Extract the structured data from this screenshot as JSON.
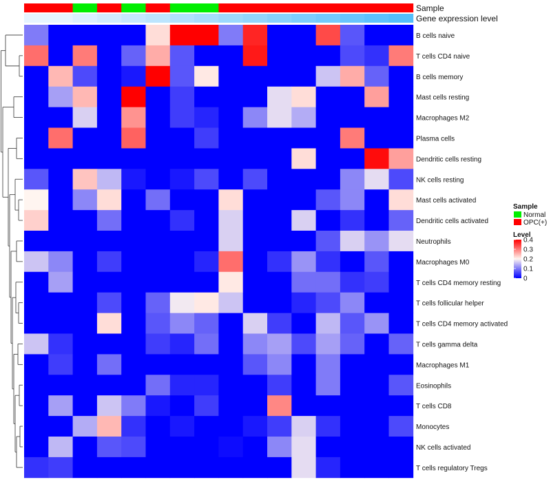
{
  "chart_data": {
    "type": "heatmap",
    "title": "",
    "annotation_labels": {
      "sample": "Sample",
      "expression": "Gene expression level"
    },
    "columns_sample": [
      "OPC(+)",
      "OPC(+)",
      "Normal",
      "OPC(+)",
      "Normal",
      "OPC(+)",
      "Normal",
      "Normal",
      "OPC(+)",
      "OPC(+)",
      "OPC(+)",
      "OPC(+)",
      "OPC(+)",
      "OPC(+)",
      "OPC(+)",
      "OPC(+)"
    ],
    "columns_expression_level": [
      0.05,
      0.05,
      0.1,
      0.15,
      0.2,
      0.25,
      0.3,
      0.35,
      0.4,
      0.45,
      0.5,
      0.55,
      0.6,
      0.65,
      0.7,
      0.75
    ],
    "rows": [
      "B cells naive",
      "T cells CD4 naive",
      "B cells memory",
      "Mast cells resting",
      "Macrophages M2",
      "Plasma cells",
      "Dendritic cells resting",
      "NK cells resting",
      "Mast cells activated",
      "Dendritic cells activated",
      "Neutrophils",
      "Macrophages M0",
      "T cells CD4 memory resting",
      "T cells follicular helper",
      "T cells CD4 memory activated",
      "T cells gamma delta",
      "Macrophages M1",
      "Eosinophils",
      "T cells CD8",
      "Monocytes",
      "NK cells activated",
      "T cells regulatory  Tregs"
    ],
    "values": [
      [
        0.1,
        0,
        0,
        0,
        0,
        0.22,
        0.4,
        0.4,
        0.1,
        0.37,
        0,
        0,
        0.34,
        0.07,
        0,
        0
      ],
      [
        0.31,
        0,
        0.3,
        0,
        0.08,
        0.26,
        0.07,
        0,
        0,
        0.38,
        0,
        0,
        0,
        0.06,
        0.04,
        0.3
      ],
      [
        0,
        0.25,
        0.06,
        0,
        0.02,
        0.4,
        0.07,
        0.21,
        0,
        0,
        0,
        0,
        0.16,
        0.26,
        0.08,
        0
      ],
      [
        0,
        0.13,
        0.25,
        0,
        0.4,
        0,
        0.05,
        0,
        0,
        0,
        0.18,
        0.22,
        0,
        0,
        0.27,
        0
      ],
      [
        0,
        0,
        0.17,
        0,
        0.28,
        0,
        0.05,
        0.03,
        0,
        0.11,
        0.18,
        0.14,
        0,
        0,
        0,
        0
      ],
      [
        0,
        0.31,
        0,
        0,
        0.32,
        0,
        0,
        0.05,
        0,
        0,
        0,
        0,
        0,
        0.3,
        0,
        0
      ],
      [
        0,
        0,
        0,
        0,
        0,
        0,
        0,
        0,
        0,
        0,
        0,
        0.22,
        0,
        0,
        0.39,
        0.27
      ],
      [
        0.07,
        0,
        0.24,
        0.15,
        0.02,
        0,
        0.02,
        0.06,
        0,
        0.06,
        0,
        0,
        0,
        0.11,
        0.18,
        0.06
      ],
      [
        0.2,
        0,
        0.11,
        0.22,
        0,
        0.09,
        0,
        0,
        0.22,
        0,
        0,
        0,
        0.07,
        0.11,
        0,
        0.22
      ],
      [
        0.23,
        0,
        0,
        0.09,
        0,
        0,
        0.04,
        0,
        0.17,
        0,
        0,
        0.17,
        0,
        0.04,
        0,
        0.08
      ],
      [
        0,
        0,
        0,
        0,
        0,
        0,
        0,
        0,
        0.17,
        0,
        0,
        0,
        0.07,
        0.17,
        0.12,
        0.18
      ],
      [
        0.16,
        0.11,
        0,
        0.05,
        0,
        0,
        0,
        0.03,
        0.31,
        0,
        0.04,
        0.12,
        0.04,
        0,
        0.07,
        0
      ],
      [
        0,
        0.13,
        0,
        0,
        0,
        0,
        0,
        0,
        0.21,
        0,
        0,
        0.09,
        0.09,
        0.04,
        0.05,
        0
      ],
      [
        0,
        0,
        0,
        0.06,
        0,
        0.08,
        0.19,
        0.21,
        0.16,
        0,
        0,
        0.03,
        0.06,
        0.11,
        0,
        0
      ],
      [
        0,
        0,
        0,
        0.22,
        0,
        0.07,
        0.11,
        0.08,
        0,
        0.17,
        0.05,
        0,
        0.15,
        0.07,
        0.12,
        0
      ],
      [
        0.16,
        0.04,
        0,
        0,
        0,
        0.05,
        0.03,
        0.09,
        0,
        0.11,
        0.13,
        0.06,
        0.13,
        0.08,
        0,
        0.08
      ],
      [
        0,
        0.05,
        0,
        0.09,
        0,
        0,
        0,
        0,
        0,
        0.07,
        0.11,
        0,
        0.1,
        0,
        0,
        0
      ],
      [
        0,
        0,
        0,
        0,
        0,
        0.09,
        0.03,
        0.03,
        0,
        0,
        0.05,
        0,
        0.1,
        0,
        0,
        0.07
      ],
      [
        0,
        0.13,
        0,
        0.16,
        0.1,
        0.02,
        0,
        0.05,
        0,
        0,
        0.29,
        0,
        0,
        0,
        0,
        0
      ],
      [
        0,
        0,
        0.14,
        0.25,
        0.04,
        0,
        0.02,
        0,
        0,
        0.02,
        0.05,
        0.17,
        0.04,
        0,
        0,
        0.06
      ],
      [
        0,
        0.15,
        0,
        0.07,
        0.06,
        0,
        0,
        0,
        0.01,
        0,
        0.11,
        0.18,
        0,
        0,
        0,
        0
      ],
      [
        0.04,
        0.05,
        0,
        0,
        0,
        0,
        0,
        0,
        0,
        0,
        0,
        0.18,
        0.03,
        0,
        0,
        0
      ]
    ],
    "sample_legend": {
      "title": "Sample",
      "items": [
        {
          "label": "Normal",
          "color": "#00ee00"
        },
        {
          "label": "OPC(+)",
          "color": "#ff0000"
        }
      ]
    },
    "level_legend": {
      "title": "Level",
      "ticks": [
        "0",
        "0.1",
        "0.2",
        "0.3",
        "0.4"
      ],
      "min": 0,
      "max": 0.4,
      "colors": {
        "low": "#0000ff",
        "mid": "#fff5f0",
        "high": "#ff0000"
      }
    }
  }
}
